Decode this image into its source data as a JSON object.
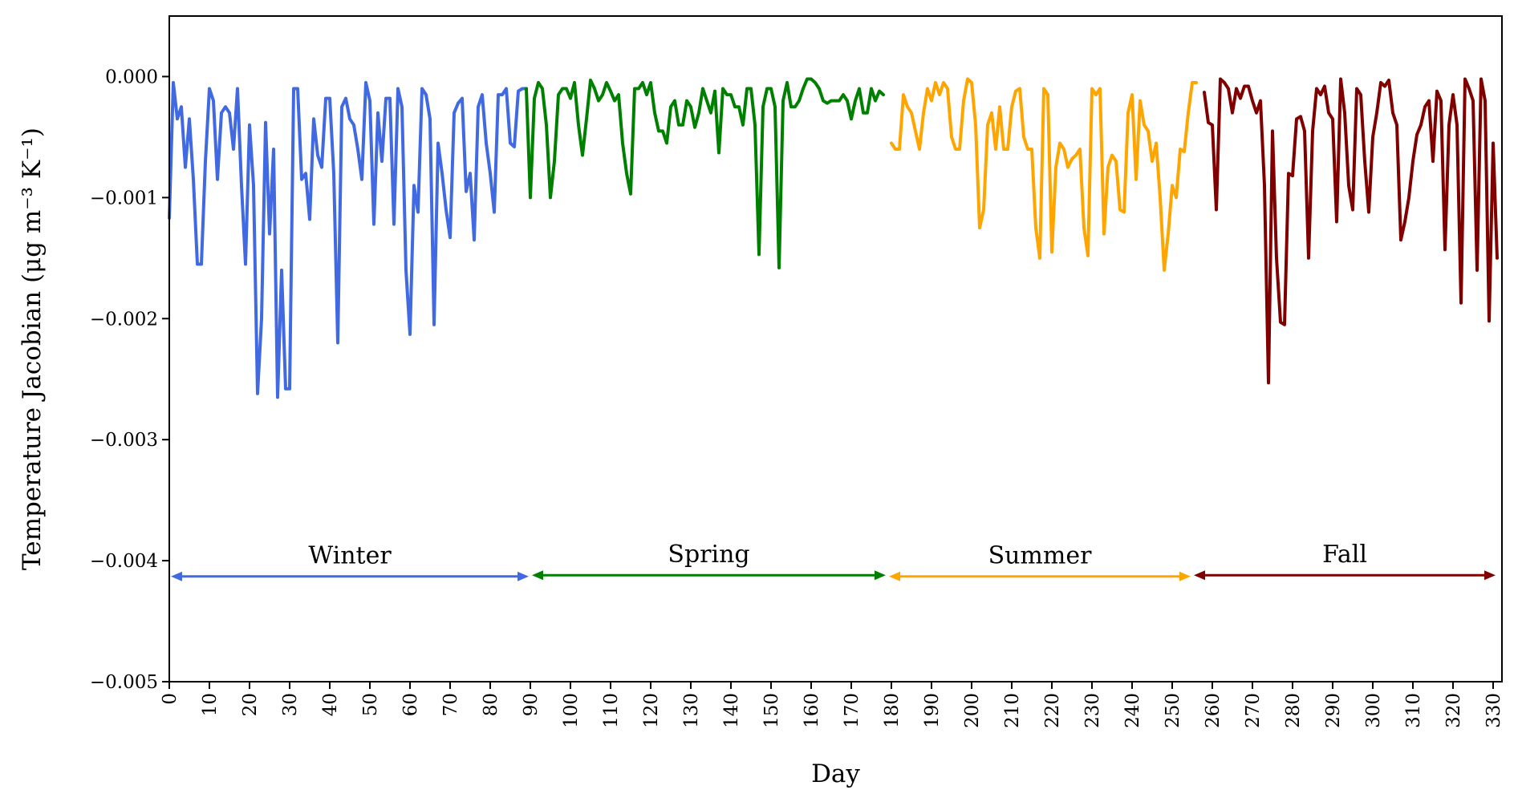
{
  "chart_data": {
    "type": "line",
    "title": "",
    "xlabel": "Day",
    "ylabel": "Temperature Jacobian (μg m⁻³ K⁻¹)",
    "xlim": [
      0,
      331
    ],
    "ylim": [
      -0.005,
      0.0005
    ],
    "xticks": [
      0,
      10,
      20,
      30,
      40,
      50,
      60,
      70,
      80,
      90,
      100,
      110,
      120,
      130,
      140,
      150,
      160,
      170,
      180,
      190,
      200,
      210,
      220,
      230,
      240,
      250,
      260,
      270,
      280,
      290,
      300,
      310,
      320,
      330
    ],
    "yticks": [
      {
        "value": 0.0,
        "label": "0.000"
      },
      {
        "value": -0.001,
        "label": "−0.001"
      },
      {
        "value": -0.002,
        "label": "−0.002"
      },
      {
        "value": -0.003,
        "label": "−0.003"
      },
      {
        "value": -0.004,
        "label": "−0.004"
      },
      {
        "value": -0.005,
        "label": "−0.005"
      }
    ],
    "grid": false,
    "series": [
      {
        "name": "Winter",
        "color": "#4169e1",
        "x": [
          0,
          1,
          2,
          3,
          4,
          5,
          6,
          7,
          8,
          9,
          10,
          11,
          12,
          13,
          14,
          15,
          16,
          17,
          18,
          19,
          20,
          21,
          22,
          23,
          24,
          25,
          26,
          27,
          28,
          29,
          30,
          31,
          32,
          33,
          34,
          35,
          36,
          37,
          38,
          39,
          40,
          41,
          42,
          43,
          44,
          45,
          46,
          47,
          48,
          49,
          50,
          51,
          52,
          53,
          54,
          55,
          56,
          57,
          58,
          59,
          60,
          61,
          62,
          63,
          64,
          65,
          66,
          67,
          68,
          69,
          70,
          71,
          72,
          73,
          74,
          75,
          76,
          77,
          78,
          79,
          80,
          81,
          82,
          83,
          84,
          85,
          86,
          87,
          88,
          89
        ],
        "y": [
          -0.00117,
          -5e-05,
          -0.00035,
          -0.00025,
          -0.00075,
          -0.00035,
          -0.00085,
          -0.00155,
          -0.00155,
          -0.0007,
          -0.0001,
          -0.0002,
          -0.00085,
          -0.0003,
          -0.00025,
          -0.0003,
          -0.0006,
          -0.0001,
          -0.0009,
          -0.00155,
          -0.0004,
          -0.0009,
          -0.00262,
          -0.002,
          -0.00038,
          -0.0013,
          -0.0006,
          -0.00265,
          -0.0016,
          -0.00258,
          -0.00258,
          -0.0001,
          -0.0001,
          -0.00085,
          -0.0008,
          -0.00118,
          -0.00035,
          -0.00065,
          -0.00075,
          -0.00018,
          -0.00018,
          -0.0008,
          -0.0022,
          -0.00025,
          -0.00018,
          -0.00035,
          -0.0004,
          -0.0006,
          -0.00085,
          -5e-05,
          -0.0002,
          -0.00122,
          -0.0003,
          -0.0007,
          -0.00018,
          -0.00018,
          -0.00122,
          -0.0001,
          -0.00025,
          -0.0016,
          -0.00213,
          -0.0009,
          -0.00112,
          -0.0001,
          -0.00015,
          -0.00035,
          -0.00205,
          -0.00055,
          -0.0008,
          -0.0011,
          -0.00133,
          -0.0003,
          -0.00022,
          -0.00018,
          -0.00095,
          -0.0008,
          -0.00135,
          -0.00025,
          -0.00015,
          -0.00055,
          -0.0008,
          -0.00112,
          -0.00015,
          -0.00015,
          -0.0001,
          -0.00055,
          -0.00058,
          -0.00012,
          -0.0001,
          -0.0001
        ]
      },
      {
        "name": "Spring",
        "color": "#008000",
        "x": [
          89,
          90,
          91,
          92,
          93,
          94,
          95,
          96,
          97,
          98,
          99,
          100,
          101,
          102,
          103,
          104,
          105,
          106,
          107,
          108,
          109,
          110,
          111,
          112,
          113,
          114,
          115,
          116,
          117,
          118,
          119,
          120,
          121,
          122,
          123,
          124,
          125,
          126,
          127,
          128,
          129,
          130,
          131,
          132,
          133,
          134,
          135,
          136,
          137,
          138,
          139,
          140,
          141,
          142,
          143,
          144,
          145,
          146,
          147,
          148,
          149,
          150,
          151,
          152,
          153,
          154,
          155,
          156,
          157,
          158,
          159,
          160,
          161,
          162,
          163,
          164,
          165,
          166,
          167,
          168,
          169,
          170,
          171,
          172,
          173,
          174,
          175,
          176,
          177,
          178
        ],
        "y": [
          -0.0001,
          -0.001,
          -0.00018,
          -5e-05,
          -0.0001,
          -0.0004,
          -0.001,
          -0.0007,
          -0.00015,
          -0.0001,
          -0.0001,
          -0.00018,
          -5e-05,
          -0.0004,
          -0.00065,
          -0.00035,
          -3e-05,
          -0.0001,
          -0.0002,
          -0.00015,
          -5e-05,
          -0.00012,
          -0.0002,
          -0.00015,
          -0.00055,
          -0.0008,
          -0.00097,
          -0.0001,
          -0.0001,
          -5e-05,
          -0.00015,
          -5e-05,
          -0.0003,
          -0.00045,
          -0.00045,
          -0.00055,
          -0.00025,
          -0.0002,
          -0.0004,
          -0.0004,
          -0.0002,
          -0.00025,
          -0.00042,
          -0.0003,
          -0.0001,
          -0.0002,
          -0.0003,
          -0.00012,
          -0.00063,
          -0.0001,
          -0.00015,
          -0.00015,
          -0.00025,
          -0.00025,
          -0.0004,
          -0.0001,
          -0.0001,
          -0.0004,
          -0.00147,
          -0.00025,
          -0.0001,
          -0.0001,
          -0.00025,
          -0.00158,
          -0.0002,
          -5e-05,
          -0.00025,
          -0.00025,
          -0.0002,
          -0.0001,
          -2e-05,
          -2e-05,
          -5e-05,
          -0.0001,
          -0.0002,
          -0.00022,
          -0.0002,
          -0.0002,
          -0.0002,
          -0.00015,
          -0.0002,
          -0.00035,
          -0.0002,
          -0.0001,
          -0.0003,
          -0.0003,
          -0.0001,
          -0.0002,
          -0.00012,
          -0.00015
        ]
      },
      {
        "name": "Summer",
        "color": "#ffa500",
        "x": [
          180,
          181,
          182,
          183,
          184,
          185,
          186,
          187,
          188,
          189,
          190,
          191,
          192,
          193,
          194,
          195,
          196,
          197,
          198,
          199,
          200,
          201,
          202,
          203,
          204,
          205,
          206,
          207,
          208,
          209,
          210,
          211,
          212,
          213,
          214,
          215,
          216,
          217,
          218,
          219,
          220,
          221,
          222,
          223,
          224,
          225,
          226,
          227,
          228,
          229,
          230,
          231,
          232,
          233,
          234,
          235,
          236,
          237,
          238,
          239,
          240,
          241,
          242,
          243,
          244,
          245,
          246,
          247,
          248,
          249,
          250,
          251,
          252,
          253,
          254,
          255,
          256
        ],
        "y": [
          -0.00055,
          -0.0006,
          -0.0006,
          -0.00015,
          -0.00025,
          -0.0003,
          -0.00045,
          -0.0006,
          -0.0003,
          -0.0001,
          -0.0002,
          -5e-05,
          -0.00015,
          -5e-05,
          -0.0001,
          -0.0005,
          -0.0006,
          -0.0006,
          -0.0002,
          -2e-05,
          -5e-05,
          -0.0004,
          -0.00125,
          -0.0011,
          -0.0004,
          -0.0003,
          -0.0006,
          -0.00025,
          -0.0006,
          -0.0006,
          -0.00025,
          -0.00012,
          -0.0001,
          -0.0005,
          -0.0006,
          -0.0006,
          -0.00125,
          -0.0015,
          -0.0001,
          -0.00015,
          -0.00145,
          -0.00075,
          -0.00055,
          -0.0006,
          -0.00075,
          -0.00068,
          -0.00065,
          -0.0006,
          -0.00125,
          -0.00148,
          -0.0001,
          -0.00015,
          -0.0001,
          -0.0013,
          -0.00075,
          -0.00065,
          -0.0007,
          -0.0011,
          -0.00112,
          -0.0003,
          -0.00015,
          -0.00085,
          -0.0002,
          -0.0004,
          -0.00045,
          -0.0007,
          -0.00055,
          -0.001,
          -0.0016,
          -0.0013,
          -0.0009,
          -0.001,
          -0.0006,
          -0.00062,
          -0.0003,
          -5e-05,
          -5e-05
        ]
      },
      {
        "name": "Fall",
        "color": "#800000",
        "x": [
          258,
          259,
          260,
          261,
          262,
          263,
          264,
          265,
          266,
          267,
          268,
          269,
          270,
          271,
          272,
          273,
          274,
          275,
          276,
          277,
          278,
          279,
          280,
          281,
          282,
          283,
          284,
          285,
          286,
          287,
          288,
          289,
          290,
          291,
          292,
          293,
          294,
          295,
          296,
          297,
          298,
          299,
          300,
          301,
          302,
          303,
          304,
          305,
          306,
          307,
          308,
          309,
          310,
          311,
          312,
          313,
          314,
          315,
          316,
          317,
          318,
          319,
          320,
          321,
          322,
          323,
          324,
          325,
          326,
          327,
          328,
          329,
          330,
          331
        ],
        "y": [
          -0.00013,
          -0.00038,
          -0.0004,
          -0.0011,
          -2e-05,
          -5e-05,
          -0.0001,
          -0.0003,
          -0.0001,
          -0.00018,
          -8e-05,
          -8e-05,
          -0.0002,
          -0.0003,
          -0.0002,
          -0.0009,
          -0.00253,
          -0.00045,
          -0.0015,
          -0.00203,
          -0.00205,
          -0.0008,
          -0.00082,
          -0.00035,
          -0.00033,
          -0.00045,
          -0.0015,
          -0.00045,
          -0.0001,
          -0.00015,
          -8e-05,
          -0.0003,
          -0.00035,
          -0.0012,
          -2e-05,
          -0.0003,
          -0.0009,
          -0.0011,
          -0.0001,
          -0.00015,
          -0.0007,
          -0.00112,
          -0.0005,
          -0.0003,
          -5e-05,
          -8e-05,
          -3e-05,
          -0.0003,
          -0.0004,
          -0.00135,
          -0.0012,
          -0.001,
          -0.0007,
          -0.00048,
          -0.0004,
          -0.00025,
          -0.0002,
          -0.0007,
          -0.00012,
          -0.0002,
          -0.00143,
          -0.0004,
          -0.00015,
          -0.0004,
          -0.00187,
          -2e-05,
          -0.0001,
          -0.0002,
          -0.0016,
          -2e-05,
          -0.0002,
          -0.00202,
          -0.00055,
          -0.0015
        ]
      }
    ],
    "annotations": [
      {
        "text": "Winter",
        "x_start": 0,
        "x_end": 90,
        "y": -0.00413,
        "color": "#4169e1"
      },
      {
        "text": "Spring",
        "x_start": 90,
        "x_end": 179,
        "y": -0.00412,
        "color": "#008000"
      },
      {
        "text": "Summer",
        "x_start": 179,
        "x_end": 255,
        "y": -0.00413,
        "color": "#ffa500"
      },
      {
        "text": "Fall",
        "x_start": 255,
        "x_end": 331,
        "y": -0.00412,
        "color": "#800000"
      }
    ]
  }
}
